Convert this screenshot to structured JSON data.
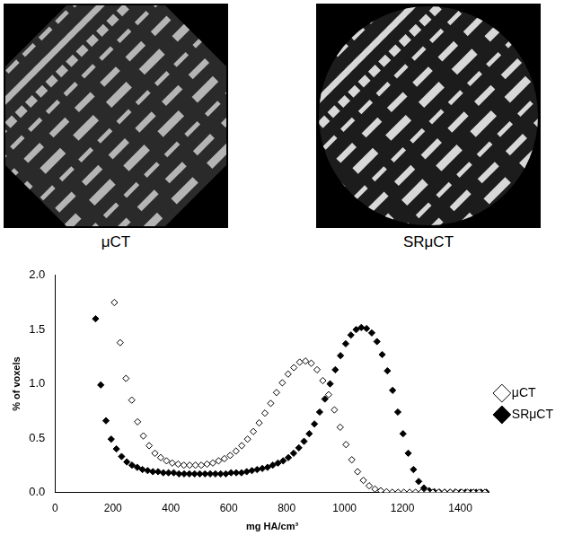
{
  "chart_data": {
    "type": "scatter",
    "x_label": "mg HA/cm³",
    "y_label": "% of voxels",
    "xlim": [
      0,
      1500
    ],
    "xticks": [
      0,
      200,
      400,
      600,
      800,
      1000,
      1200,
      1400
    ],
    "ylim": [
      0,
      2
    ],
    "yticks": [
      {
        "value": 0,
        "label": "0.0"
      },
      {
        "value": 0.5,
        "label": "0.5"
      },
      {
        "value": 1,
        "label": "1.0"
      },
      {
        "value": 1.5,
        "label": "1.5"
      },
      {
        "value": 2,
        "label": "2.0"
      }
    ],
    "grid": false,
    "legend": "right",
    "series": [
      {
        "name": "μCT",
        "color": "#000000",
        "marker": "open_diamond",
        "x": [
          205,
          225,
          245,
          265,
          285,
          305,
          325,
          345,
          365,
          385,
          405,
          425,
          445,
          465,
          485,
          505,
          525,
          545,
          565,
          585,
          605,
          625,
          645,
          665,
          685,
          705,
          725,
          745,
          765,
          785,
          805,
          825,
          845,
          865,
          885,
          905,
          925,
          945,
          965,
          985,
          1005,
          1025,
          1045,
          1065,
          1085,
          1105,
          1125,
          1145,
          1165,
          1185,
          1205,
          1225,
          1245,
          1265,
          1285,
          1305,
          1325,
          1345,
          1365,
          1385,
          1405,
          1425,
          1445,
          1465,
          1485
        ],
        "values": [
          1.75,
          1.38,
          1.05,
          0.85,
          0.65,
          0.52,
          0.43,
          0.36,
          0.32,
          0.29,
          0.27,
          0.26,
          0.25,
          0.25,
          0.25,
          0.25,
          0.26,
          0.27,
          0.29,
          0.31,
          0.34,
          0.38,
          0.43,
          0.49,
          0.56,
          0.64,
          0.73,
          0.82,
          0.92,
          1.01,
          1.09,
          1.15,
          1.2,
          1.21,
          1.19,
          1.13,
          1.03,
          0.9,
          0.76,
          0.6,
          0.44,
          0.3,
          0.19,
          0.11,
          0.06,
          0.03,
          0.015,
          0.005,
          0,
          0,
          0,
          0,
          0,
          0,
          0,
          0,
          0,
          0,
          0,
          0,
          0,
          0,
          0,
          0,
          0
        ]
      },
      {
        "name": "SRμCT",
        "color": "#000000",
        "marker": "diamond",
        "x": [
          140,
          158,
          176,
          194,
          212,
          230,
          248,
          266,
          284,
          302,
          320,
          338,
          356,
          374,
          392,
          410,
          428,
          446,
          464,
          482,
          500,
          518,
          536,
          554,
          572,
          590,
          608,
          626,
          644,
          662,
          680,
          698,
          716,
          734,
          752,
          770,
          788,
          806,
          824,
          842,
          860,
          878,
          896,
          914,
          932,
          950,
          968,
          986,
          1004,
          1022,
          1040,
          1058,
          1076,
          1094,
          1112,
          1130,
          1148,
          1166,
          1184,
          1202,
          1220,
          1238,
          1256,
          1274,
          1292,
          1310,
          1328,
          1346,
          1364,
          1382,
          1400,
          1418,
          1436,
          1454,
          1472,
          1490
        ],
        "values": [
          1.6,
          0.99,
          0.66,
          0.49,
          0.4,
          0.33,
          0.28,
          0.25,
          0.23,
          0.21,
          0.2,
          0.19,
          0.19,
          0.18,
          0.18,
          0.18,
          0.17,
          0.17,
          0.17,
          0.17,
          0.17,
          0.17,
          0.17,
          0.17,
          0.17,
          0.17,
          0.18,
          0.18,
          0.18,
          0.19,
          0.2,
          0.21,
          0.22,
          0.23,
          0.25,
          0.27,
          0.29,
          0.32,
          0.36,
          0.41,
          0.47,
          0.54,
          0.63,
          0.74,
          0.86,
          1.0,
          1.13,
          1.26,
          1.37,
          1.45,
          1.5,
          1.52,
          1.51,
          1.47,
          1.39,
          1.27,
          1.12,
          0.94,
          0.74,
          0.54,
          0.36,
          0.21,
          0.1,
          0.04,
          0.015,
          0.005,
          0,
          0,
          0,
          0,
          0,
          0,
          0,
          0,
          0,
          0
        ]
      }
    ]
  },
  "image_labels": [
    "μCT",
    "SRμCT"
  ]
}
